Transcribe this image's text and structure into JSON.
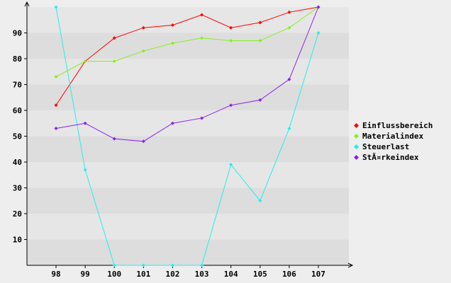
{
  "chart_data": {
    "type": "line",
    "categories": [
      "98",
      "99",
      "100",
      "101",
      "102",
      "103",
      "104",
      "105",
      "106",
      "107"
    ],
    "ylim": [
      0,
      100
    ],
    "yticks": [
      10,
      20,
      30,
      40,
      50,
      60,
      70,
      80,
      90
    ],
    "grid": true,
    "legend_position": "right",
    "series": [
      {
        "name": "Einflussbereich",
        "color": "#ff0000",
        "values": [
          62,
          79,
          88,
          92,
          93,
          97,
          92,
          94,
          98,
          100
        ]
      },
      {
        "name": "Materialindex",
        "color": "#88ee22",
        "values": [
          73,
          79,
          79,
          83,
          86,
          88,
          87,
          87,
          92,
          100
        ]
      },
      {
        "name": "Steuerlast",
        "color": "#22eeee",
        "values": [
          100,
          37,
          0,
          0,
          0,
          0,
          39,
          25,
          53,
          90
        ]
      },
      {
        "name": "StÃ¤rkeindex",
        "color": "#8822ee",
        "values": [
          53,
          55,
          49,
          48,
          55,
          57,
          62,
          64,
          72,
          100
        ]
      }
    ]
  }
}
